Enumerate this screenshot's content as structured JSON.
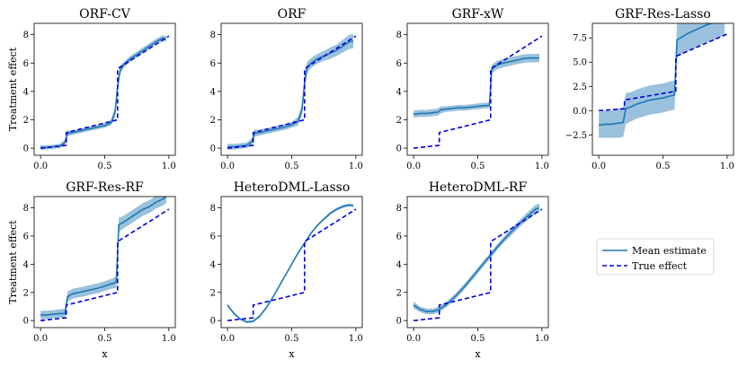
{
  "colors": {
    "mean": "#1f77b4",
    "band": "#9ac1dd",
    "true": "#0000dd"
  },
  "legend": {
    "placement": "right-middle",
    "mean_label": "Mean estimate",
    "true_label": "True effect"
  },
  "chart_data": [
    {
      "type": "line",
      "title": "ORF-CV",
      "ylabel": "Treatment effect",
      "xlabel": "",
      "xlim": [
        -0.05,
        1.05
      ],
      "ylim": [
        -0.5,
        8.8
      ],
      "xticks": [
        "0.0",
        "0.5",
        "1.0"
      ],
      "yticks": [
        "0",
        "2",
        "4",
        "6",
        "8"
      ],
      "x": [
        0,
        0.05,
        0.1,
        0.15,
        0.19,
        0.21,
        0.25,
        0.3,
        0.35,
        0.4,
        0.45,
        0.5,
        0.55,
        0.58,
        0.6,
        0.62,
        0.65,
        0.7,
        0.75,
        0.8,
        0.85,
        0.9,
        0.95,
        0.98
      ],
      "mean": [
        0.05,
        0.05,
        0.1,
        0.15,
        0.4,
        1.05,
        1.1,
        1.2,
        1.3,
        1.4,
        1.5,
        1.6,
        1.8,
        2.5,
        4.3,
        5.5,
        5.9,
        6.3,
        6.6,
        6.9,
        7.2,
        7.5,
        7.75,
        7.7
      ],
      "band": [
        0.15,
        0.15,
        0.15,
        0.15,
        0.2,
        0.2,
        0.15,
        0.15,
        0.15,
        0.15,
        0.15,
        0.15,
        0.2,
        0.35,
        0.45,
        0.3,
        0.2,
        0.2,
        0.2,
        0.2,
        0.2,
        0.2,
        0.2,
        0.2
      ],
      "true": [
        [
          0,
          0
        ],
        [
          0.2,
          0.2
        ],
        [
          0.2,
          1.1
        ],
        [
          0.6,
          2.0
        ],
        [
          0.6,
          5.6
        ],
        [
          1.0,
          7.9
        ]
      ]
    },
    {
      "type": "line",
      "title": "ORF",
      "ylabel": "",
      "xlabel": "",
      "xlim": [
        -0.05,
        1.05
      ],
      "ylim": [
        -0.5,
        8.8
      ],
      "xticks": [
        "0.0",
        "0.5",
        "1.0"
      ],
      "yticks": [
        "0",
        "2",
        "4",
        "6",
        "8"
      ],
      "x": [
        0,
        0.05,
        0.1,
        0.15,
        0.19,
        0.21,
        0.25,
        0.3,
        0.35,
        0.4,
        0.45,
        0.5,
        0.55,
        0.58,
        0.6,
        0.62,
        0.65,
        0.7,
        0.75,
        0.8,
        0.85,
        0.9,
        0.95,
        0.98
      ],
      "mean": [
        0.1,
        0.1,
        0.15,
        0.2,
        0.45,
        1.05,
        1.1,
        1.2,
        1.3,
        1.4,
        1.5,
        1.65,
        1.9,
        2.7,
        4.6,
        5.7,
        6.0,
        6.3,
        6.5,
        6.7,
        6.9,
        7.2,
        7.5,
        7.55
      ],
      "band": [
        0.2,
        0.2,
        0.2,
        0.2,
        0.25,
        0.25,
        0.2,
        0.2,
        0.2,
        0.2,
        0.2,
        0.2,
        0.3,
        0.4,
        0.5,
        0.4,
        0.35,
        0.35,
        0.35,
        0.4,
        0.4,
        0.45,
        0.5,
        0.5
      ],
      "true": [
        [
          0,
          0
        ],
        [
          0.2,
          0.2
        ],
        [
          0.2,
          1.1
        ],
        [
          0.6,
          2.0
        ],
        [
          0.6,
          5.6
        ],
        [
          1.0,
          7.9
        ]
      ]
    },
    {
      "type": "line",
      "title": "GRF-xW",
      "ylabel": "",
      "xlabel": "",
      "xlim": [
        -0.05,
        1.05
      ],
      "ylim": [
        -0.5,
        8.8
      ],
      "xticks": [
        "0.0",
        "0.5",
        "1.0"
      ],
      "yticks": [
        "0",
        "2",
        "4",
        "6",
        "8"
      ],
      "x": [
        0,
        0.05,
        0.1,
        0.15,
        0.19,
        0.21,
        0.25,
        0.3,
        0.35,
        0.4,
        0.45,
        0.5,
        0.55,
        0.59,
        0.61,
        0.65,
        0.7,
        0.75,
        0.8,
        0.85,
        0.9,
        0.95,
        0.98
      ],
      "mean": [
        2.4,
        2.45,
        2.45,
        2.5,
        2.55,
        2.7,
        2.75,
        2.8,
        2.85,
        2.85,
        2.9,
        2.95,
        3.0,
        3.0,
        5.6,
        5.85,
        6.0,
        6.1,
        6.2,
        6.3,
        6.35,
        6.35,
        6.35
      ],
      "band": [
        0.25,
        0.25,
        0.25,
        0.25,
        0.25,
        0.25,
        0.2,
        0.2,
        0.2,
        0.2,
        0.2,
        0.2,
        0.2,
        0.2,
        0.3,
        0.3,
        0.3,
        0.3,
        0.3,
        0.3,
        0.3,
        0.3,
        0.3
      ],
      "true": [
        [
          0,
          0
        ],
        [
          0.2,
          0.2
        ],
        [
          0.2,
          1.1
        ],
        [
          0.6,
          2.0
        ],
        [
          0.6,
          5.6
        ],
        [
          1.0,
          7.9
        ]
      ]
    },
    {
      "type": "line",
      "title": "GRF-Res-Lasso",
      "ylabel": "",
      "xlabel": "",
      "xlim": [
        -0.05,
        1.05
      ],
      "ylim": [
        -4.6,
        9.0
      ],
      "xticks": [
        "0.0",
        "0.5",
        "1.0"
      ],
      "yticks": [
        "−2.5",
        "0.0",
        "2.5",
        "5.0",
        "7.5"
      ],
      "ytick_values": [
        -2.5,
        0,
        2.5,
        5,
        7.5
      ],
      "x": [
        0,
        0.05,
        0.1,
        0.15,
        0.19,
        0.21,
        0.25,
        0.3,
        0.35,
        0.4,
        0.45,
        0.5,
        0.55,
        0.59,
        0.61,
        0.65,
        0.7,
        0.75,
        0.8,
        0.85,
        0.9,
        0.95,
        0.98
      ],
      "mean": [
        -1.5,
        -1.4,
        -1.4,
        -1.3,
        -1.2,
        0.2,
        0.4,
        0.7,
        0.9,
        1.1,
        1.2,
        1.3,
        1.5,
        1.6,
        7.3,
        7.6,
        8.0,
        8.3,
        8.6,
        8.9,
        9.1,
        9.4,
        9.6
      ],
      "band": [
        1.3,
        1.4,
        1.4,
        1.5,
        1.5,
        1.6,
        1.5,
        1.5,
        1.5,
        1.5,
        1.5,
        1.5,
        1.5,
        1.5,
        1.8,
        1.8,
        1.8,
        1.8,
        1.8,
        1.8,
        1.8,
        1.8,
        1.8
      ],
      "true": [
        [
          0,
          0
        ],
        [
          0.2,
          0.2
        ],
        [
          0.2,
          1.1
        ],
        [
          0.6,
          2.0
        ],
        [
          0.6,
          5.6
        ],
        [
          1.0,
          7.9
        ]
      ]
    },
    {
      "type": "line",
      "title": "GRF-Res-RF",
      "ylabel": "Treatment effect",
      "xlabel": "x",
      "xlim": [
        -0.05,
        1.05
      ],
      "ylim": [
        -0.5,
        8.8
      ],
      "xticks": [
        "0.0",
        "0.5",
        "1.0"
      ],
      "yticks": [
        "0",
        "2",
        "4",
        "6",
        "8"
      ],
      "x": [
        0,
        0.05,
        0.1,
        0.15,
        0.19,
        0.21,
        0.25,
        0.3,
        0.35,
        0.4,
        0.45,
        0.5,
        0.55,
        0.59,
        0.61,
        0.65,
        0.7,
        0.75,
        0.8,
        0.85,
        0.9,
        0.95,
        0.98
      ],
      "mean": [
        0.4,
        0.4,
        0.45,
        0.5,
        0.5,
        1.7,
        1.9,
        2.0,
        2.1,
        2.2,
        2.3,
        2.45,
        2.6,
        2.7,
        6.8,
        7.0,
        7.3,
        7.6,
        7.9,
        8.1,
        8.4,
        8.6,
        8.8
      ],
      "band": [
        0.3,
        0.3,
        0.3,
        0.3,
        0.35,
        0.35,
        0.35,
        0.35,
        0.35,
        0.35,
        0.35,
        0.35,
        0.35,
        0.4,
        0.5,
        0.45,
        0.45,
        0.45,
        0.45,
        0.45,
        0.45,
        0.45,
        0.45
      ],
      "true": [
        [
          0,
          0
        ],
        [
          0.2,
          0.2
        ],
        [
          0.2,
          1.1
        ],
        [
          0.6,
          2.0
        ],
        [
          0.6,
          5.6
        ],
        [
          1.0,
          7.9
        ]
      ]
    },
    {
      "type": "line",
      "title": "HeteroDML-Lasso",
      "ylabel": "",
      "xlabel": "x",
      "xlim": [
        -0.05,
        1.05
      ],
      "ylim": [
        -0.5,
        8.8
      ],
      "xticks": [
        "0.0",
        "0.5",
        "1.0"
      ],
      "yticks": [
        "0",
        "2",
        "4",
        "6",
        "8"
      ],
      "x": [
        0,
        0.05,
        0.1,
        0.15,
        0.2,
        0.25,
        0.3,
        0.35,
        0.4,
        0.45,
        0.5,
        0.55,
        0.6,
        0.65,
        0.7,
        0.75,
        0.8,
        0.85,
        0.9,
        0.95,
        0.98
      ],
      "mean": [
        1.1,
        0.5,
        0.1,
        -0.1,
        -0.05,
        0.3,
        0.9,
        1.6,
        2.4,
        3.2,
        4.0,
        4.8,
        5.5,
        6.2,
        6.75,
        7.2,
        7.6,
        7.9,
        8.1,
        8.2,
        8.15
      ],
      "band": [
        0.1,
        0.08,
        0.08,
        0.08,
        0.08,
        0.08,
        0.08,
        0.08,
        0.08,
        0.08,
        0.08,
        0.08,
        0.08,
        0.08,
        0.08,
        0.08,
        0.1,
        0.1,
        0.1,
        0.1,
        0.1
      ],
      "true": [
        [
          0,
          0
        ],
        [
          0.2,
          0.2
        ],
        [
          0.2,
          1.1
        ],
        [
          0.6,
          2.0
        ],
        [
          0.6,
          5.6
        ],
        [
          1.0,
          7.9
        ]
      ]
    },
    {
      "type": "line",
      "title": "HeteroDML-RF",
      "ylabel": "",
      "xlabel": "x",
      "xlim": [
        -0.05,
        1.05
      ],
      "ylim": [
        -0.5,
        8.8
      ],
      "xticks": [
        "0.0",
        "0.5",
        "1.0"
      ],
      "yticks": [
        "0",
        "2",
        "4",
        "6",
        "8"
      ],
      "x": [
        0,
        0.05,
        0.1,
        0.15,
        0.2,
        0.25,
        0.3,
        0.35,
        0.4,
        0.45,
        0.5,
        0.55,
        0.6,
        0.65,
        0.7,
        0.75,
        0.8,
        0.85,
        0.9,
        0.95,
        0.98
      ],
      "mean": [
        1.1,
        0.8,
        0.65,
        0.65,
        0.8,
        1.1,
        1.5,
        1.95,
        2.45,
        3.0,
        3.55,
        4.1,
        4.65,
        5.2,
        5.7,
        6.2,
        6.65,
        7.1,
        7.5,
        7.9,
        8.0
      ],
      "band": [
        0.25,
        0.2,
        0.2,
        0.2,
        0.2,
        0.2,
        0.2,
        0.2,
        0.2,
        0.2,
        0.2,
        0.2,
        0.2,
        0.2,
        0.2,
        0.25,
        0.25,
        0.25,
        0.3,
        0.3,
        0.3
      ],
      "true": [
        [
          0,
          0
        ],
        [
          0.2,
          0.2
        ],
        [
          0.2,
          1.1
        ],
        [
          0.6,
          2.0
        ],
        [
          0.6,
          5.6
        ],
        [
          1.0,
          7.9
        ]
      ]
    }
  ]
}
